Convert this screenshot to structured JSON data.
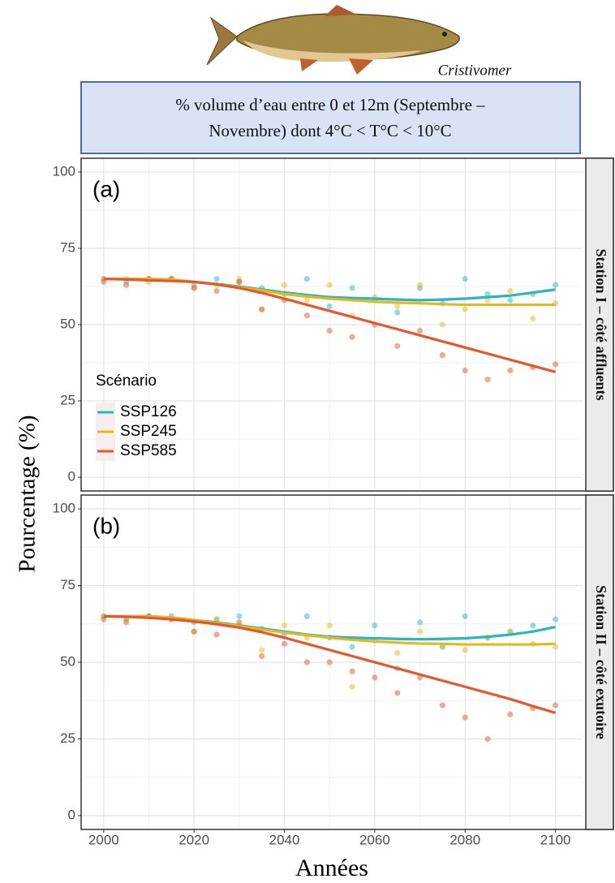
{
  "header": {
    "title_lines": [
      "% volume d’eau entre 0 et 12m (Septembre –",
      "Novembre) dont 4°C < T°C < 10°C"
    ],
    "caption": "Cristivomer"
  },
  "chart_data": [
    {
      "type": "scatter",
      "title": "(a)",
      "strip": "Station I – côté affluents",
      "y_label": "Pourcentage (%)",
      "legend_title": "Scénario",
      "legend": "left",
      "grid": true,
      "xlim": [
        1995,
        2106
      ],
      "ylim": [
        -4.5,
        104.5
      ],
      "xticks": [
        2000,
        2020,
        2040,
        2060,
        2080,
        2100
      ],
      "yticks": [
        0,
        25,
        50,
        75,
        100
      ],
      "x": [
        2000,
        2005,
        2010,
        2015,
        2020,
        2025,
        2030,
        2035,
        2040,
        2045,
        2050,
        2055,
        2060,
        2065,
        2070,
        2075,
        2080,
        2085,
        2090,
        2095,
        2100
      ],
      "series": [
        {
          "name": "SSP126",
          "color": "#2bb5c0",
          "values": [
            65,
            64,
            65,
            65,
            63,
            65,
            64,
            62,
            60,
            65,
            56,
            62,
            58,
            54,
            62,
            57,
            65,
            60,
            58,
            60,
            63
          ],
          "trend": [
            65,
            65,
            65,
            64.8,
            64,
            63.3,
            62.5,
            61.5,
            60.5,
            59.7,
            59,
            58.7,
            58.5,
            58.2,
            58,
            58.2,
            58.5,
            59,
            59.5,
            60.5,
            61.5
          ]
        },
        {
          "name": "SSP245",
          "color": "#e6b820",
          "values": [
            65,
            65,
            64,
            65,
            62,
            63,
            65,
            55,
            63,
            58,
            63,
            53,
            59,
            56,
            63,
            50,
            55,
            58,
            61,
            52,
            57
          ],
          "trend": [
            65,
            65,
            65,
            64.8,
            64,
            63.2,
            62.3,
            61.2,
            60,
            59.2,
            58.5,
            58,
            57.5,
            57.2,
            57,
            56.7,
            56.5,
            56.5,
            56.5,
            56.5,
            56.5
          ]
        },
        {
          "name": "SSP585",
          "color": "#e8552a",
          "values": [
            64,
            63,
            65,
            65,
            62,
            61,
            64,
            55,
            58,
            53,
            48,
            46,
            50,
            43,
            48,
            40,
            35,
            32,
            35,
            36,
            37
          ],
          "trend": [
            65,
            64.8,
            64.5,
            64.3,
            64,
            63.2,
            62,
            60.4,
            58.5,
            56.5,
            54.5,
            52.5,
            50.5,
            48.5,
            46.5,
            44.5,
            42.5,
            40.5,
            38.5,
            36.5,
            34.5
          ]
        }
      ]
    },
    {
      "type": "scatter",
      "title": "(b)",
      "strip": "Station II – côté exutoire",
      "x_label": "Années",
      "grid": true,
      "xlim": [
        1995,
        2106
      ],
      "ylim": [
        -4.5,
        104.5
      ],
      "xticks": [
        2000,
        2020,
        2040,
        2060,
        2080,
        2100
      ],
      "yticks": [
        0,
        25,
        50,
        75,
        100
      ],
      "x": [
        2000,
        2005,
        2010,
        2015,
        2020,
        2025,
        2030,
        2035,
        2040,
        2045,
        2050,
        2055,
        2060,
        2065,
        2070,
        2075,
        2080,
        2085,
        2090,
        2095,
        2100
      ],
      "series": [
        {
          "name": "SSP126",
          "color": "#2bb5c0",
          "values": [
            65,
            64,
            65,
            65,
            63,
            64,
            65,
            61,
            59,
            65,
            58,
            55,
            62,
            48,
            63,
            55,
            65,
            58,
            60,
            62,
            64
          ],
          "trend": [
            65,
            65,
            65,
            64.6,
            63.8,
            63,
            62,
            61,
            60,
            59,
            58.3,
            58,
            57.8,
            57.6,
            57.5,
            57.6,
            57.8,
            58.3,
            59,
            60,
            61.5
          ]
        },
        {
          "name": "SSP245",
          "color": "#e6b820",
          "values": [
            65,
            64,
            65,
            64,
            60,
            64,
            62,
            54,
            62,
            58,
            62,
            42,
            57,
            53,
            60,
            55,
            54,
            58,
            60,
            56,
            55
          ],
          "trend": [
            65,
            65,
            65,
            64.6,
            63.8,
            62.8,
            61.8,
            60.7,
            59.7,
            58.8,
            58,
            57.3,
            56.8,
            56.4,
            56.1,
            56,
            55.8,
            55.8,
            55.8,
            55.8,
            56
          ]
        },
        {
          "name": "SSP585",
          "color": "#e8552a",
          "values": [
            64,
            63,
            65,
            64,
            60,
            59,
            63,
            52,
            56,
            50,
            50,
            47,
            45,
            40,
            45,
            36,
            32,
            25,
            33,
            35,
            36
          ],
          "trend": [
            65,
            64.8,
            64.5,
            64,
            63.3,
            62.4,
            61.3,
            59.8,
            58,
            56,
            54,
            52,
            50,
            48,
            46,
            44,
            42,
            40,
            38,
            35.7,
            33.5
          ]
        }
      ]
    }
  ]
}
